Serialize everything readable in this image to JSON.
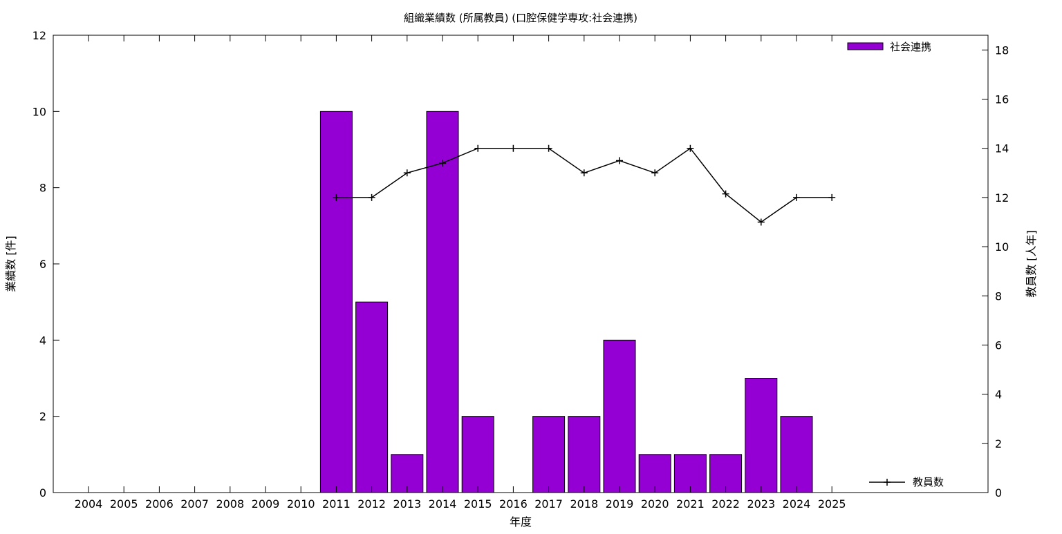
{
  "chart_data": {
    "type": "bar",
    "title": "組織業績数 (所属教員) (口腔保健学専攻:社会連携)",
    "xlabel": "年度",
    "ylabel": "業績数 [件]",
    "y2label": "教員数 [人年]",
    "categories": [
      "2004",
      "2005",
      "2006",
      "2007",
      "2008",
      "2009",
      "2010",
      "2011",
      "2012",
      "2013",
      "2014",
      "2015",
      "2016",
      "2017",
      "2018",
      "2019",
      "2020",
      "2021",
      "2022",
      "2023",
      "2024",
      "2025"
    ],
    "ylim": [
      0,
      12
    ],
    "y2lim": [
      0,
      18.6
    ],
    "yticks": [
      0,
      2,
      4,
      6,
      8,
      10,
      12
    ],
    "y2ticks": [
      0,
      2,
      4,
      6,
      8,
      10,
      12,
      14,
      16,
      18
    ],
    "grid": false,
    "series": [
      {
        "name": "社会連携",
        "kind": "bar",
        "axis": "left",
        "color": "#9400d3",
        "values": [
          null,
          null,
          null,
          null,
          null,
          null,
          null,
          10,
          5,
          1,
          10,
          2,
          null,
          2,
          2,
          4,
          1,
          1,
          1,
          3,
          2,
          null
        ]
      },
      {
        "name": "教員数",
        "kind": "line",
        "axis": "right",
        "color": "#000000",
        "values": [
          null,
          null,
          null,
          null,
          null,
          null,
          null,
          12,
          12,
          13,
          13.4,
          14,
          14,
          14,
          13,
          13.5,
          13,
          14,
          12.15,
          11,
          12,
          12
        ]
      }
    ],
    "legend": [
      {
        "label": "社会連携",
        "position": "top-right"
      },
      {
        "label": "教員数",
        "position": "bottom-right"
      }
    ]
  }
}
